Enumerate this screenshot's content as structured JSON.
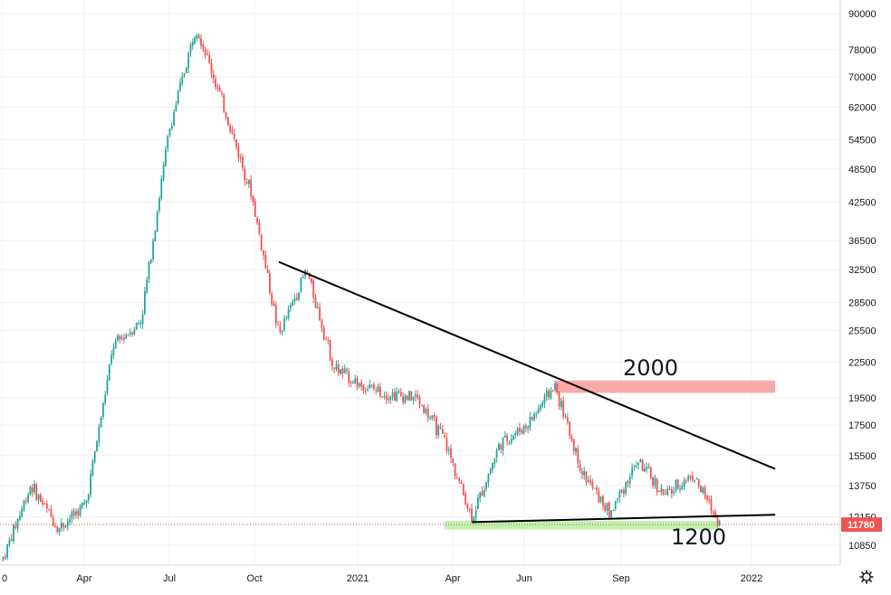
{
  "chart_data": {
    "type": "candlestick",
    "title": "",
    "scale": "log",
    "grid": true,
    "colors": {
      "up": "#26a69a",
      "down": "#ef5350",
      "trendline": "#000000",
      "resistance_zone": "#f7a1a1",
      "support_zone": "#b9f0a6",
      "last_price_line": "#ef5350",
      "grid": "#eef0f3",
      "axis_text": "#131722"
    },
    "x_ticks": [
      "0",
      "Apr",
      "Jul",
      "Oct",
      "2021",
      "Apr",
      "Jun",
      "Sep",
      "2022"
    ],
    "y_ticks": [
      90000,
      78000,
      70000,
      62000,
      54500,
      48500,
      42500,
      36500,
      32500,
      28500,
      25500,
      22500,
      19500,
      17500,
      15500,
      13750,
      12150,
      10850
    ],
    "y_tick_labels": [
      "90000",
      "78000",
      "70000",
      "62000",
      "54500",
      "48500",
      "42500",
      "36500",
      "32500",
      "28500",
      "25500",
      "22500",
      "19500",
      "17500",
      "15500",
      "13750",
      "12150",
      "10850"
    ],
    "last_price": 11780,
    "last_price_label": "11780",
    "annotations": [
      {
        "text": "2000",
        "near_price": 21000
      },
      {
        "text": "1200",
        "near_price": 11700
      }
    ],
    "trendlines": [
      {
        "name": "descending resistance",
        "from": {
          "date": "2020-11",
          "price": 33500
        },
        "to": {
          "date": "2022-05",
          "price": 14700
        }
      },
      {
        "name": "ascending support",
        "from": {
          "date": "2021-06",
          "price": 11900
        },
        "to": {
          "date": "2022-05",
          "price": 12250
        }
      }
    ],
    "zones": [
      {
        "name": "resistance zone",
        "price_low": 19900,
        "price_high": 20900,
        "from": "2021-09",
        "to": "2022-05"
      },
      {
        "name": "support zone",
        "price_low": 11550,
        "price_high": 11950,
        "from": "2021-05",
        "to": "2022-03"
      }
    ],
    "price_path": [
      {
        "date": "2020-01",
        "close": 10300
      },
      {
        "date": "2020-02",
        "close": 13800
      },
      {
        "date": "2020-03",
        "close": 11600
      },
      {
        "date": "2020-04",
        "close": 12800
      },
      {
        "date": "2020-05",
        "close": 24000
      },
      {
        "date": "2020-06",
        "close": 26500
      },
      {
        "date": "2020-07",
        "close": 56000
      },
      {
        "date": "2020-08",
        "close": 86000
      },
      {
        "date": "2020-09",
        "close": 62000
      },
      {
        "date": "2020-10",
        "close": 44000
      },
      {
        "date": "2020-11",
        "close": 25000
      },
      {
        "date": "2020-12",
        "close": 32500
      },
      {
        "date": "2021-01",
        "close": 22000
      },
      {
        "date": "2021-02",
        "close": 20500
      },
      {
        "date": "2021-03",
        "close": 19800
      },
      {
        "date": "2021-04",
        "close": 19500
      },
      {
        "date": "2021-05",
        "close": 16500
      },
      {
        "date": "2021-06",
        "close": 12100
      },
      {
        "date": "2021-07",
        "close": 16200
      },
      {
        "date": "2021-08",
        "close": 17500
      },
      {
        "date": "2021-09",
        "close": 20500
      },
      {
        "date": "2021-10",
        "close": 14500
      },
      {
        "date": "2021-11",
        "close": 12300
      },
      {
        "date": "2021-12",
        "close": 15200
      },
      {
        "date": "2022-01",
        "close": 13200
      },
      {
        "date": "2022-02",
        "close": 14400
      },
      {
        "date": "2022-03",
        "close": 11780
      }
    ]
  }
}
